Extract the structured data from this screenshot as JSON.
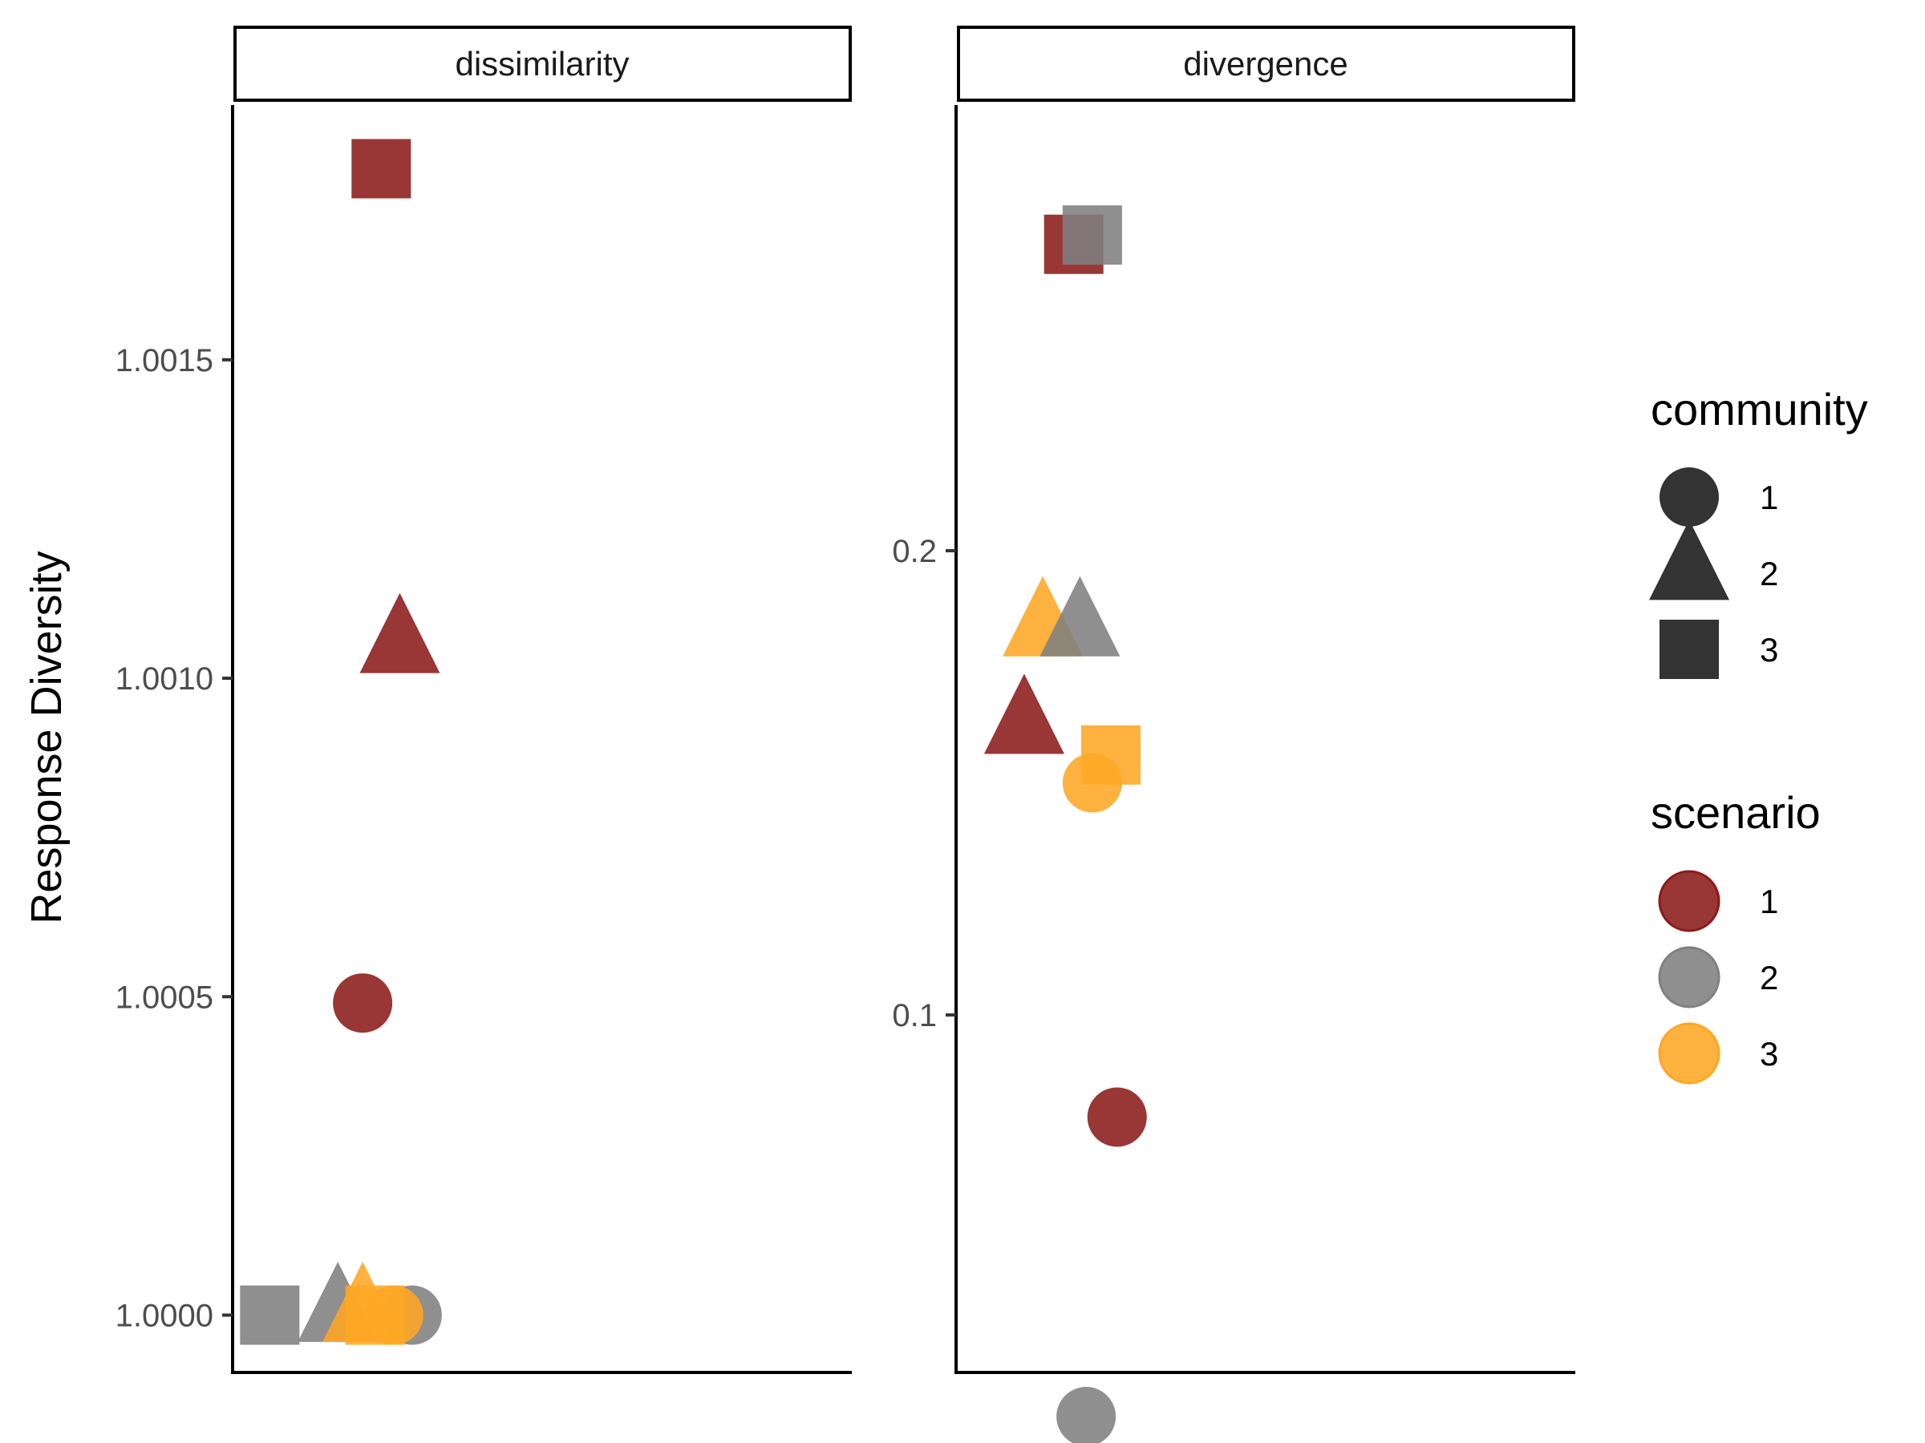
{
  "chart_data": {
    "type": "scatter",
    "ylabel": "Response Diversity",
    "facets": [
      {
        "name": "dissimilarity",
        "ylim": [
          0.99991,
          1.0019
        ],
        "yticks": [
          1.0,
          1.0005,
          1.001,
          1.0015
        ],
        "ytick_labels": [
          "1.0000",
          "1.0005",
          "1.0010",
          "1.0015"
        ],
        "points": [
          {
            "community": "3",
            "scenario": "1",
            "y": 1.0018
          },
          {
            "community": "2",
            "scenario": "1",
            "y": 1.00105
          },
          {
            "community": "1",
            "scenario": "1",
            "y": 1.00049
          },
          {
            "community": "3",
            "scenario": "2",
            "y": 1.0
          },
          {
            "community": "2",
            "scenario": "2",
            "y": 1.0
          },
          {
            "community": "1",
            "scenario": "2",
            "y": 1.0
          },
          {
            "community": "2",
            "scenario": "3",
            "y": 1.0
          },
          {
            "community": "3",
            "scenario": "3",
            "y": 1.0
          },
          {
            "community": "1",
            "scenario": "3",
            "y": 1.0
          }
        ]
      },
      {
        "name": "divergence",
        "ylim": [
          0.023,
          0.296
        ],
        "yticks": [
          0.1,
          0.2
        ],
        "ytick_labels": [
          "0.1",
          "0.2"
        ],
        "points": [
          {
            "community": "3",
            "scenario": "1",
            "y": 0.266
          },
          {
            "community": "3",
            "scenario": "2",
            "y": 0.268
          },
          {
            "community": "2",
            "scenario": "3",
            "y": 0.183
          },
          {
            "community": "2",
            "scenario": "2",
            "y": 0.183
          },
          {
            "community": "2",
            "scenario": "1",
            "y": 0.162
          },
          {
            "community": "3",
            "scenario": "3",
            "y": 0.156
          },
          {
            "community": "1",
            "scenario": "3",
            "y": 0.15
          },
          {
            "community": "1",
            "scenario": "1",
            "y": 0.078
          },
          {
            "community": "1",
            "scenario": "2",
            "y": 0.0135
          }
        ]
      }
    ],
    "legend": {
      "placement": "right",
      "community": {
        "title": "community",
        "entries": [
          "1",
          "2",
          "3"
        ],
        "shapes": [
          "circle",
          "triangle",
          "square"
        ]
      },
      "scenario": {
        "title": "scenario",
        "entries": [
          "1",
          "2",
          "3"
        ],
        "colors": [
          "#8b1a1a",
          "#808080",
          "#ffa726"
        ]
      }
    }
  }
}
